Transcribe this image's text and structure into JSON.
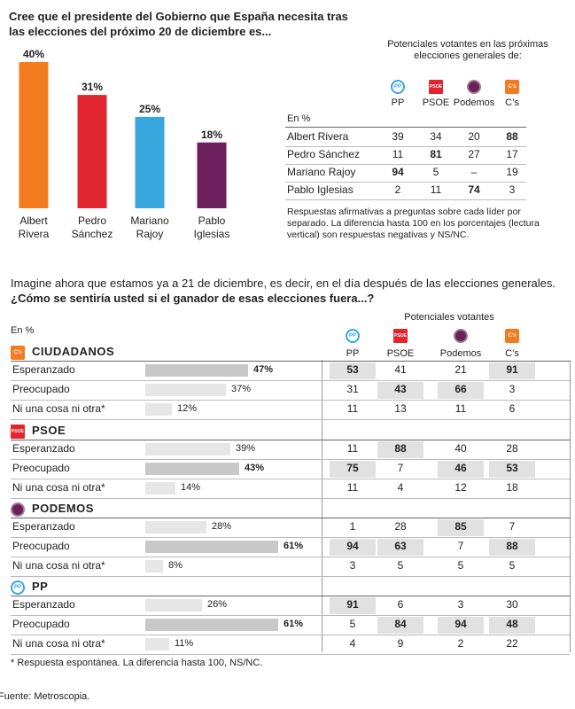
{
  "top": {
    "title": "Cree que el presidente del Gobierno que España necesita tras las elecciones del próximo 20 de diciembre es...",
    "header": "Potenciales votantes en las próximas elecciones generales de:",
    "en_pct": "En %",
    "parties": [
      "PP",
      "PSOE",
      "Podemos",
      "C’s"
    ],
    "logo_texts": {
      "pp": "PP",
      "psoe": "PSOE",
      "cs": "C’s"
    },
    "note": "Respuestas afirmativas a preguntas sobre cada líder por separado. La diferencia hasta 100 en los porcentajes (lectura vertical) son respuestas negativas y NS/NC.",
    "rows": [
      {
        "name": "Albert Rivera",
        "vals": [
          "39",
          "34",
          "20",
          "88"
        ],
        "bold": [
          false,
          false,
          false,
          true
        ]
      },
      {
        "name": "Pedro Sánchez",
        "vals": [
          "11",
          "81",
          "27",
          "17"
        ],
        "bold": [
          false,
          true,
          false,
          false
        ]
      },
      {
        "name": "Mariano Rajoy",
        "vals": [
          "94",
          "5",
          "–",
          "19"
        ],
        "bold": [
          true,
          false,
          false,
          false
        ]
      },
      {
        "name": "Pablo Iglesias",
        "vals": [
          "2",
          "11",
          "74",
          "3"
        ],
        "bold": [
          false,
          false,
          true,
          false
        ]
      }
    ]
  },
  "chart_data": [
    {
      "type": "bar",
      "categories": [
        "Albert Rivera",
        "Pedro Sánchez",
        "Mariano Rajoy",
        "Pablo Iglesias"
      ],
      "category_lines": [
        [
          "Albert",
          "Rivera"
        ],
        [
          "Pedro",
          "Sánchez"
        ],
        [
          "Mariano",
          "Rajoy"
        ],
        [
          "Pablo",
          "Iglesias"
        ]
      ],
      "values": [
        40,
        31,
        25,
        18
      ],
      "labels": [
        "40%",
        "31%",
        "25%",
        "18%"
      ],
      "colors": [
        "#f47b20",
        "#e2262f",
        "#38a7dd",
        "#6b1f5d"
      ],
      "title": "Cree que el presidente del Gobierno que España necesita tras las elecciones del próximo 20 de diciembre es...",
      "ylim": [
        0,
        40
      ]
    },
    {
      "type": "bar",
      "orientation": "horizontal",
      "title": "Imagine ahora que estamos ya a 21 de diciembre, es decir, en el día después de las elecciones generales. ¿Cómo se sentiría usted si el ganador de esas elecciones fuera...?",
      "xlim": [
        0,
        61
      ],
      "groups": [
        {
          "party": "CIUDADANOS",
          "categories": [
            "Esperanzado",
            "Preocupado",
            "Ni una cosa ni otra*"
          ],
          "values": [
            47,
            37,
            12
          ]
        },
        {
          "party": "PSOE",
          "categories": [
            "Esperanzado",
            "Preocupado",
            "Ni una cosa ni otra*"
          ],
          "values": [
            39,
            43,
            14
          ]
        },
        {
          "party": "PODEMOS",
          "categories": [
            "Esperanzado",
            "Preocupado",
            "Ni una cosa ni otra*"
          ],
          "values": [
            28,
            61,
            8
          ]
        },
        {
          "party": "PP",
          "categories": [
            "Esperanzado",
            "Preocupado",
            "Ni una cosa ni otra*"
          ],
          "values": [
            26,
            61,
            11
          ]
        }
      ]
    }
  ],
  "bottom": {
    "question_plain": "Imagine ahora que estamos ya a 21 de diciembre, es decir, en el día después de las elecciones generales.",
    "question_bold": "¿Cómo se sentiría usted si el ganador de esas elecciones fuera...?",
    "en_pct": "En %",
    "header": "Potenciales votantes",
    "parties": [
      "PP",
      "PSOE",
      "Podemos",
      "C’s"
    ],
    "sections": [
      {
        "key": "cs",
        "title": "CIUDADANOS",
        "rows": [
          {
            "label": "Esperanzado",
            "pct": "47%",
            "bold": true,
            "vals": [
              "53",
              "41",
              "21",
              "91"
            ],
            "hl": [
              true,
              false,
              false,
              true
            ]
          },
          {
            "label": "Preocupado",
            "pct": "37%",
            "bold": false,
            "vals": [
              "31",
              "43",
              "66",
              "3"
            ],
            "hl": [
              false,
              true,
              true,
              false
            ]
          },
          {
            "label": "Ni una cosa ni otra*",
            "pct": "12%",
            "bold": false,
            "vals": [
              "11",
              "13",
              "11",
              "6"
            ],
            "hl": [
              false,
              false,
              false,
              false
            ]
          }
        ]
      },
      {
        "key": "psoe",
        "title": "PSOE",
        "rows": [
          {
            "label": "Esperanzado",
            "pct": "39%",
            "bold": false,
            "vals": [
              "11",
              "88",
              "40",
              "28"
            ],
            "hl": [
              false,
              true,
              false,
              false
            ]
          },
          {
            "label": "Preocupado",
            "pct": "43%",
            "bold": true,
            "vals": [
              "75",
              "7",
              "46",
              "53"
            ],
            "hl": [
              true,
              false,
              true,
              true
            ]
          },
          {
            "label": "Ni una cosa ni otra*",
            "pct": "14%",
            "bold": false,
            "vals": [
              "11",
              "4",
              "12",
              "18"
            ],
            "hl": [
              false,
              false,
              false,
              false
            ]
          }
        ]
      },
      {
        "key": "pod",
        "title": "PODEMOS",
        "rows": [
          {
            "label": "Esperanzado",
            "pct": "28%",
            "bold": false,
            "vals": [
              "1",
              "28",
              "85",
              "7"
            ],
            "hl": [
              false,
              false,
              true,
              false
            ]
          },
          {
            "label": "Preocupado",
            "pct": "61%",
            "bold": true,
            "vals": [
              "94",
              "63",
              "7",
              "88"
            ],
            "hl": [
              true,
              true,
              false,
              true
            ]
          },
          {
            "label": "Ni una cosa ni otra*",
            "pct": "8%",
            "bold": false,
            "vals": [
              "3",
              "5",
              "5",
              "5"
            ],
            "hl": [
              false,
              false,
              false,
              false
            ]
          }
        ]
      },
      {
        "key": "pp",
        "title": "PP",
        "rows": [
          {
            "label": "Esperanzado",
            "pct": "26%",
            "bold": false,
            "vals": [
              "91",
              "6",
              "3",
              "30"
            ],
            "hl": [
              true,
              false,
              false,
              false
            ]
          },
          {
            "label": "Preocupado",
            "pct": "61%",
            "bold": true,
            "vals": [
              "5",
              "84",
              "94",
              "48"
            ],
            "hl": [
              false,
              true,
              true,
              true
            ]
          },
          {
            "label": "Ni una cosa ni otra*",
            "pct": "11%",
            "bold": false,
            "vals": [
              "4",
              "9",
              "2",
              "22"
            ],
            "hl": [
              false,
              false,
              false,
              false
            ]
          }
        ]
      }
    ],
    "footnote": "* Respuesta espontánea. La diferencia hasta 100, NS/NC.",
    "source": "Fuente: Metroscopia."
  }
}
